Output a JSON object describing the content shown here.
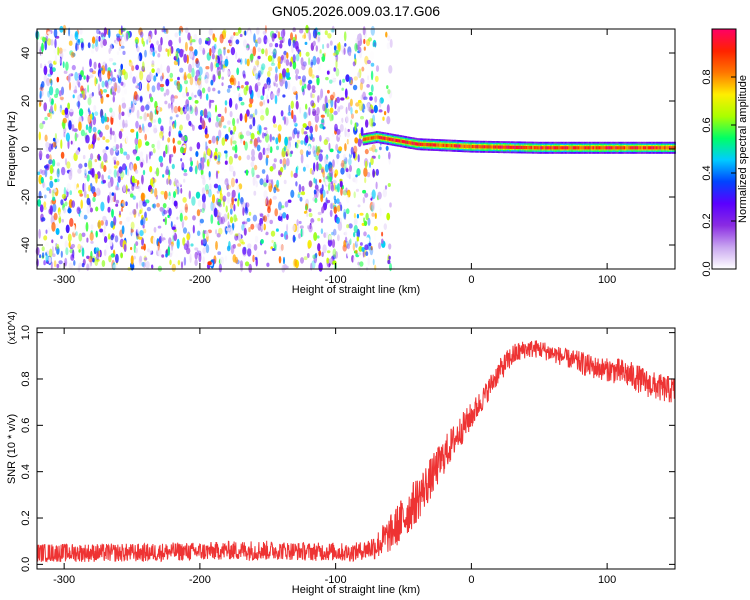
{
  "title": "GN05.2026.009.03.17.G06",
  "chart_data": [
    {
      "type": "heatmap",
      "xlabel": "Height of straight line (km)",
      "ylabel": "Frequency (Hz)",
      "xlim": [
        -320,
        150
      ],
      "ylim": [
        -50,
        50
      ],
      "x_ticks": [
        -300,
        -200,
        -100,
        0,
        100
      ],
      "y_ticks": [
        -40,
        -20,
        0,
        20,
        40
      ],
      "grid": false,
      "colorbar": {
        "label": "Normalized spectral amplitude",
        "range": [
          0,
          1
        ],
        "ticks": [
          0.0,
          0.2,
          0.4,
          0.6,
          0.8
        ],
        "colormap": [
          "#ffffff",
          "#c9a6f0",
          "#8a2be2",
          "#5a00ff",
          "#0044ff",
          "#00ccff",
          "#00ff66",
          "#aaff00",
          "#ffee00",
          "#ff7700",
          "#ff2200",
          "#ff0066"
        ]
      },
      "features": [
        {
          "name": "broadband noise",
          "x_range": [
            -320,
            -70
          ],
          "y_range": [
            -50,
            50
          ],
          "amplitude": [
            0.0,
            0.15
          ]
        },
        {
          "name": "carrier line",
          "points": [
            [
              -80,
              4
            ],
            [
              -70,
              5
            ],
            [
              -60,
              4
            ],
            [
              -40,
              2
            ],
            [
              -20,
              1.5
            ],
            [
              0,
              1
            ],
            [
              50,
              0.5
            ],
            [
              100,
              0.5
            ],
            [
              150,
              0.5
            ]
          ],
          "amplitude": [
            0.5,
            1.0
          ]
        }
      ]
    },
    {
      "type": "line",
      "xlabel": "Height of straight line (km)",
      "ylabel": "SNR (10 * v/v)",
      "y_multiplier": "(x10^4)",
      "xlim": [
        -320,
        150
      ],
      "ylim": [
        -0.02,
        1.02
      ],
      "x_ticks": [
        -300,
        -200,
        -100,
        0,
        100
      ],
      "y_ticks": [
        0.0,
        0.2,
        0.4,
        0.6,
        0.8,
        1.0
      ],
      "grid": false,
      "series": [
        {
          "color": "#ee3333",
          "x": [
            -320,
            -300,
            -280,
            -260,
            -240,
            -220,
            -200,
            -180,
            -160,
            -140,
            -120,
            -100,
            -90,
            -80,
            -70,
            -60,
            -50,
            -40,
            -30,
            -20,
            -10,
            0,
            10,
            20,
            30,
            40,
            50,
            60,
            70,
            80,
            90,
            100,
            110,
            120,
            130,
            140,
            150
          ],
          "y": [
            0.05,
            0.05,
            0.05,
            0.05,
            0.05,
            0.055,
            0.055,
            0.06,
            0.06,
            0.06,
            0.055,
            0.055,
            0.05,
            0.06,
            0.08,
            0.13,
            0.2,
            0.28,
            0.37,
            0.47,
            0.56,
            0.64,
            0.73,
            0.83,
            0.9,
            0.93,
            0.93,
            0.91,
            0.89,
            0.87,
            0.85,
            0.84,
            0.83,
            0.81,
            0.78,
            0.76,
            0.75
          ],
          "noise": [
            0.04,
            0.04,
            0.04,
            0.04,
            0.04,
            0.04,
            0.04,
            0.04,
            0.045,
            0.04,
            0.04,
            0.04,
            0.04,
            0.04,
            0.06,
            0.08,
            0.1,
            0.1,
            0.09,
            0.08,
            0.07,
            0.06,
            0.05,
            0.05,
            0.05,
            0.04,
            0.04,
            0.04,
            0.04,
            0.05,
            0.05,
            0.05,
            0.06,
            0.06,
            0.06,
            0.06,
            0.06
          ]
        }
      ]
    }
  ]
}
